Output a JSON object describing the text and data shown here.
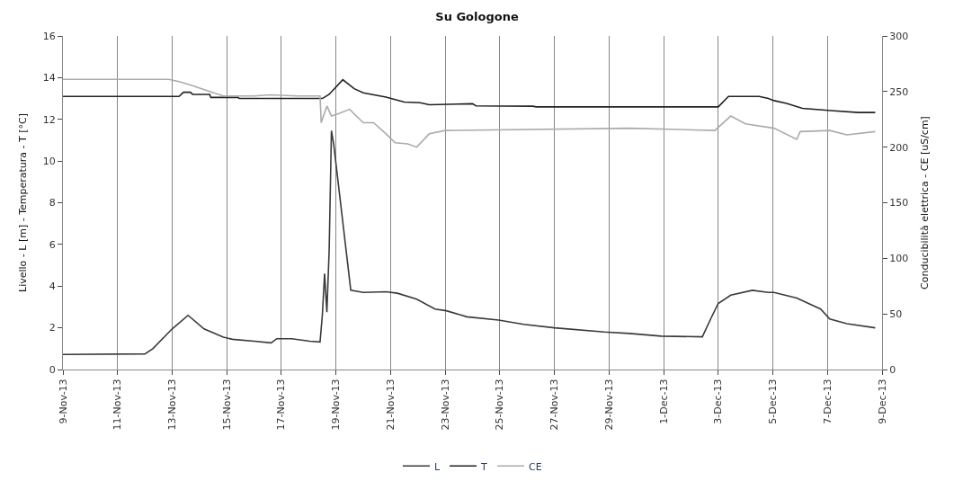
{
  "chart_data": {
    "type": "line",
    "title": "Su Gologone",
    "ylabel": "Livello - L [m] - Temperatura - T [°C]",
    "y2label": "Conducibilità elettrica - CE [uS/cm]",
    "xlim": [
      "--11-09",
      "--12-09"
    ],
    "xticks": [
      {
        "value": "--11-09",
        "label": "9-Nov-13"
      },
      {
        "value": "--11-11",
        "label": "11-Nov-13"
      },
      {
        "value": "--11-13",
        "label": "13-Nov-13"
      },
      {
        "value": "--11-15",
        "label": "15-Nov-13"
      },
      {
        "value": "--11-17",
        "label": "17-Nov-13"
      },
      {
        "value": "--11-19",
        "label": "19-Nov-13"
      },
      {
        "value": "--11-21",
        "label": "21-Nov-13"
      },
      {
        "value": "--11-23",
        "label": "23-Nov-13"
      },
      {
        "value": "--11-25",
        "label": "25-Nov-13"
      },
      {
        "value": "--11-27",
        "label": "27-Nov-13"
      },
      {
        "value": "--11-29",
        "label": "29-Nov-13"
      },
      {
        "value": "--12-01",
        "label": "1-Dec-13"
      },
      {
        "value": "--12-03",
        "label": "3-Dec-13"
      },
      {
        "value": "--12-05",
        "label": "5-Dec-13"
      },
      {
        "value": "--12-07",
        "label": "7-Dec-13"
      },
      {
        "value": "--12-09",
        "label": "9-Dec-13"
      }
    ],
    "ylim": [
      0,
      16
    ],
    "yticks": [
      0,
      2,
      4,
      6,
      8,
      10,
      12,
      14,
      16
    ],
    "y2lim": [
      0,
      300
    ],
    "y2ticks": [
      0,
      50,
      100,
      150,
      200,
      250,
      300
    ],
    "grid": "x",
    "legend": "bottom",
    "marker": "none",
    "line_style": "solid",
    "series": [
      {
        "name": "L",
        "color": "#3a3a3a",
        "x": [
          "--11-09T00:00",
          "--11-12T00:00",
          "--11-12T07:00",
          "--11-13T00:00",
          "--11-13T14:00",
          "--11-14T04:00",
          "--11-14T21:00",
          "--11-15T05:00",
          "--11-16T00:00",
          "--11-16T15:00",
          "--11-16T20:00",
          "--11-17T09:00",
          "--11-18T01:00",
          "--11-18T10:00",
          "--11-18T12:00",
          "--11-18T14:00",
          "--11-18T16:00",
          "--11-18T18:00",
          "--11-18T20:00",
          "--11-18T22:00",
          "--11-19T13:00",
          "--11-20T00:00",
          "--11-20T20:00",
          "--11-21T06:00",
          "--11-21T23:00",
          "--11-22T15:00",
          "--11-23T01:00",
          "--11-23T19:00",
          "--11-24T23:00",
          "--11-25T21:00",
          "--11-27T00:00",
          "--11-28T20:00",
          "--11-29T18:00",
          "--11-30T22:00",
          "--12-02T10:00",
          "--12-02T18:00",
          "--12-03T00:00",
          "--12-03T11:00",
          "--12-04T06:00",
          "--12-04T20:00",
          "--12-05T01:00",
          "--12-05T21:00",
          "--12-06T18:00",
          "--12-07T02:00",
          "--12-07T17:00",
          "--12-08T18:00"
        ],
        "values": [
          0.72,
          0.75,
          1.0,
          1.95,
          2.6,
          1.95,
          1.55,
          1.45,
          1.36,
          1.28,
          1.48,
          1.48,
          1.36,
          1.32,
          2.6,
          4.6,
          2.75,
          5.7,
          11.45,
          10.8,
          3.8,
          3.7,
          3.73,
          3.66,
          3.37,
          2.9,
          2.82,
          2.53,
          2.37,
          2.17,
          2.0,
          1.8,
          1.73,
          1.6,
          1.57,
          2.5,
          3.17,
          3.57,
          3.8,
          3.7,
          3.7,
          3.43,
          2.9,
          2.42,
          2.2,
          2.0
        ]
      },
      {
        "name": "T",
        "color": "#222222",
        "x": [
          "--11-09T00:00",
          "--11-13T06:00",
          "--11-13T10:00",
          "--11-13T16:00",
          "--11-13T18:00",
          "--11-14T09:00",
          "--11-14T10:00",
          "--11-15T10:00",
          "--11-15T11:00",
          "--11-18T12:00",
          "--11-18T18:00",
          "--11-19T06:00",
          "--11-19T16:00",
          "--11-20T00:00",
          "--11-20T20:00",
          "--11-21T12:00",
          "--11-22T02:00",
          "--11-22T10:00",
          "--11-24T00:00",
          "--11-24T03:00",
          "--11-26T05:00",
          "--11-26T08:00",
          "--12-03T00:00",
          "--12-03T09:00",
          "--12-04T12:00",
          "--12-04T20:00",
          "--12-05T01:00",
          "--12-05T12:00",
          "--12-06T02:00",
          "--12-07T03:00",
          "--12-08T03:00",
          "--12-08T18:00"
        ],
        "values": [
          13.1,
          13.1,
          13.3,
          13.3,
          13.2,
          13.2,
          13.05,
          13.05,
          13.0,
          13.0,
          13.2,
          13.9,
          13.47,
          13.27,
          13.07,
          12.83,
          12.8,
          12.7,
          12.75,
          12.65,
          12.63,
          12.6,
          12.6,
          13.1,
          13.1,
          13.0,
          12.9,
          12.77,
          12.53,
          12.42,
          12.33,
          12.33
        ]
      },
      {
        "name": "CE",
        "color": "#ababab",
        "axis": "y2",
        "x": [
          "--11-09T00:00",
          "--11-12T21:00",
          "--11-13T06:00",
          "--11-13T16:00",
          "--11-14T09:00",
          "--11-14T21:00",
          "--11-16T00:00",
          "--11-16T14:00",
          "--11-17T15:00",
          "--11-18T10:00",
          "--11-18T11:00",
          "--11-18T16:00",
          "--11-18T20:00",
          "--11-19T02:00",
          "--11-19T12:00",
          "--11-20T00:00",
          "--11-20T09:00",
          "--11-20T20:00",
          "--11-21T04:00",
          "--11-21T15:00",
          "--11-21T23:00",
          "--11-22T10:00",
          "--11-23T00:00",
          "--11-29T18:00",
          "--12-02T21:00",
          "--12-03T11:00",
          "--12-04T00:00",
          "--12-05T01:00",
          "--12-05T21:00",
          "--12-06T00:00",
          "--12-07T02:00",
          "--12-07T17:00",
          "--12-08T18:00"
        ],
        "values": [
          261,
          261,
          259,
          256,
          250,
          246,
          246,
          247,
          246,
          246,
          222,
          237,
          228,
          230,
          234,
          222,
          222,
          212,
          204,
          203,
          200,
          212,
          215,
          217,
          215,
          228,
          221,
          217,
          207,
          214,
          215,
          211,
          214
        ]
      }
    ]
  }
}
